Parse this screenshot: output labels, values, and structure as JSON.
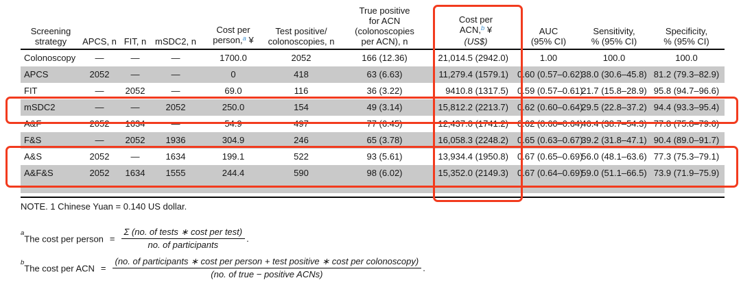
{
  "colors": {
    "highlight_box_red": "#f23b1e",
    "row_stripe_gray": "#c9c9c9",
    "footnote_link_blue": "#4493cf"
  },
  "table": {
    "columns": {
      "screening": {
        "l1": "Screening",
        "l2": "strategy"
      },
      "apcs": "APCS, n",
      "fit": "FIT, n",
      "msdc2": "mSDC2, n",
      "cost_person": {
        "l1": "Cost per",
        "l2_pre": "person,",
        "sup": "a",
        "l2_post": " ¥"
      },
      "test_pos": {
        "l1": "Test positive/",
        "l2": "colonoscopies, n"
      },
      "true_pos": {
        "l1": "True positive",
        "l2": "for ACN",
        "l3": "(colonoscopies",
        "l4": "per ACN), n"
      },
      "cost_acn": {
        "l1": "Cost per",
        "l2_pre": "ACN,",
        "sup": "b",
        "l2_post": " ¥",
        "l3": "(US$)"
      },
      "auc": {
        "l1": "AUC",
        "l2": "(95% CI)"
      },
      "sensitivity": {
        "l1": "Sensitivity,",
        "l2": "% (95% CI)"
      },
      "specificity": {
        "l1": "Specificity,",
        "l2": "% (95% CI)"
      }
    },
    "rows": [
      {
        "cells": [
          "Colonoscopy",
          "—",
          "—",
          "—",
          "1700.0",
          "2052",
          "166 (12.36)",
          "21,014.5 (2942.0)",
          "1.00",
          "100.0",
          "100.0"
        ]
      },
      {
        "cells": [
          "APCS",
          "2052",
          "—",
          "—",
          "0",
          "418",
          "63 (6.63)",
          "11,279.4 (1579.1)",
          "0.60 (0.57–0.62)",
          "38.0 (30.6–45.8)",
          "81.2 (79.3–82.9)"
        ]
      },
      {
        "cells": [
          "FIT",
          "—",
          "2052",
          "—",
          "69.0",
          "116",
          "36 (3.22)",
          "9410.8 (1317.5)",
          "0.59 (0.57–0.61)",
          "21.7 (15.8–28.9)",
          "95.8 (94.7–96.6)"
        ]
      },
      {
        "cells": [
          "mSDC2",
          "—",
          "—",
          "2052",
          "250.0",
          "154",
          "49 (3.14)",
          "15,812.2 (2213.7)",
          "0.62 (0.60–0.64)",
          "29.5 (22.8–37.2)",
          "94.4 (93.3–95.4)"
        ]
      },
      {
        "cells": [
          "A&F",
          "2052",
          "1634",
          "—",
          "54.9",
          "497",
          "77 (6.45)",
          "12,437.0 (1741.2)",
          "0.62 (0.60–0.64)",
          "46.4 (38.7–54.3)",
          "77.8 (75.8–79.6)"
        ]
      },
      {
        "cells": [
          "F&S",
          "—",
          "2052",
          "1936",
          "304.9",
          "246",
          "65 (3.78)",
          "16,058.3 (2248.2)",
          "0.65 (0.63–0.67)",
          "39.2 (31.8–47.1)",
          "90.4 (89.0–91.7)"
        ]
      },
      {
        "cells": [
          "A&S",
          "2052",
          "—",
          "1634",
          "199.1",
          "522",
          "93 (5.61)",
          "13,934.4 (1950.8)",
          "0.67 (0.65–0.69)",
          "56.0 (48.1–63.6)",
          "77.3 (75.3–79.1)"
        ]
      },
      {
        "cells": [
          "A&F&S",
          "2052",
          "1634",
          "1555",
          "244.4",
          "590",
          "98 (6.02)",
          "15,352.0 (2149.3)",
          "0.67 (0.64–0.69)",
          "59.0 (51.1–66.5)",
          "73.9 (71.9–75.9)"
        ]
      }
    ]
  },
  "note": "NOTE. 1 Chinese Yuan = 0.140 US dollar.",
  "footnotes": {
    "a": {
      "sup": "a",
      "label": "The cost per person",
      "eq": "=",
      "numerator": "Σ (no. of tests ∗ cost per test)",
      "denominator": "no. of participants",
      "period": "."
    },
    "b": {
      "sup": "b",
      "label": "The cost per ACN",
      "eq": "=",
      "numerator": "(no. of participants ∗ cost per person + test positive ∗ cost per colonoscopy)",
      "denominator": "(no. of true − positive ACNs)",
      "period": "."
    }
  }
}
